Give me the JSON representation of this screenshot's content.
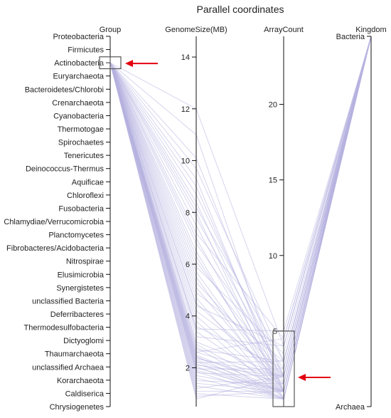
{
  "chart_data": {
    "type": "parallel-coordinates",
    "title": "Parallel coordinates",
    "line_color": "#b7b2e0",
    "axes": [
      {
        "name": "Group",
        "kind": "categorical",
        "categories": [
          "Proteobacteria",
          "Firmicutes",
          "Actinobacteria",
          "Euryarchaeota",
          "Bacteroidetes/Chlorobi",
          "Crenarchaeota",
          "Cyanobacteria",
          "Thermotogae",
          "Spirochaetes",
          "Tenericutes",
          "Deinococcus-Thermus",
          "Aquificae",
          "Chloroflexi",
          "Fusobacteria",
          "Chlamydiae/Verrucomicrobia",
          "Planctomycetes",
          "Fibrobacteres/Acidobacteria",
          "Nitrospirae",
          "Elusimicrobia",
          "Synergistetes",
          "unclassified Bacteria",
          "Deferribacteres",
          "Thermodesulfobacteria",
          "Dictyoglomi",
          "Thaumarchaeota",
          "unclassified Archaea",
          "Korarchaeota",
          "Caldiserica",
          "Chrysiogenetes"
        ]
      },
      {
        "name": "GenomeSize(MB)",
        "kind": "numeric",
        "domain": [
          0.5,
          14.8
        ],
        "ticks": [
          2,
          4,
          6,
          8,
          10,
          12,
          14
        ]
      },
      {
        "name": "ArrayCount",
        "kind": "numeric",
        "domain": [
          0,
          24.5
        ],
        "ticks": [
          5,
          10,
          15,
          20
        ]
      },
      {
        "name": "Kingdom",
        "kind": "categorical",
        "categories": [
          "Bacteria",
          "Archaea"
        ]
      }
    ],
    "brushes": [
      {
        "axis": "Group",
        "selected": [
          "Actinobacteria"
        ]
      },
      {
        "axis": "ArrayCount",
        "range": [
          0,
          5
        ]
      }
    ],
    "annotations": [
      {
        "type": "arrow",
        "color": "#e3000f",
        "points_to": "Group brush"
      },
      {
        "type": "arrow",
        "color": "#e3000f",
        "points_to": "ArrayCount brush"
      }
    ],
    "records": [
      {
        "g": "Actinobacteria",
        "s": 12.0,
        "a": 4.0,
        "k": "Bacteria"
      },
      {
        "g": "Actinobacteria",
        "s": 11.0,
        "a": 1.0,
        "k": "Bacteria"
      },
      {
        "g": "Actinobacteria",
        "s": 10.1,
        "a": 2.0,
        "k": "Bacteria"
      },
      {
        "g": "Actinobacteria",
        "s": 9.7,
        "a": 3.0,
        "k": "Bacteria"
      },
      {
        "g": "Actinobacteria",
        "s": 9.3,
        "a": 1.0,
        "k": "Bacteria"
      },
      {
        "g": "Actinobacteria",
        "s": 9.0,
        "a": 1.5,
        "k": "Bacteria"
      },
      {
        "g": "Actinobacteria",
        "s": 8.7,
        "a": 2.0,
        "k": "Bacteria"
      },
      {
        "g": "Actinobacteria",
        "s": 8.4,
        "a": 1.0,
        "k": "Bacteria"
      },
      {
        "g": "Actinobacteria",
        "s": 8.2,
        "a": 3.0,
        "k": "Bacteria"
      },
      {
        "g": "Actinobacteria",
        "s": 8.0,
        "a": 0.5,
        "k": "Bacteria"
      },
      {
        "g": "Actinobacteria",
        "s": 7.8,
        "a": 2.0,
        "k": "Bacteria"
      },
      {
        "g": "Actinobacteria",
        "s": 7.5,
        "a": 1.0,
        "k": "Bacteria"
      },
      {
        "g": "Actinobacteria",
        "s": 7.2,
        "a": 4.5,
        "k": "Bacteria"
      },
      {
        "g": "Actinobacteria",
        "s": 7.0,
        "a": 1.0,
        "k": "Bacteria"
      },
      {
        "g": "Actinobacteria",
        "s": 6.8,
        "a": 2.5,
        "k": "Bacteria"
      },
      {
        "g": "Actinobacteria",
        "s": 6.5,
        "a": 0.5,
        "k": "Bacteria"
      },
      {
        "g": "Actinobacteria",
        "s": 6.3,
        "a": 1.0,
        "k": "Bacteria"
      },
      {
        "g": "Actinobacteria",
        "s": 6.1,
        "a": 2.0,
        "k": "Bacteria"
      },
      {
        "g": "Actinobacteria",
        "s": 5.9,
        "a": 3.5,
        "k": "Bacteria"
      },
      {
        "g": "Actinobacteria",
        "s": 5.7,
        "a": 1.0,
        "k": "Bacteria"
      },
      {
        "g": "Actinobacteria",
        "s": 5.5,
        "a": 0.5,
        "k": "Bacteria"
      },
      {
        "g": "Actinobacteria",
        "s": 5.3,
        "a": 2.0,
        "k": "Bacteria"
      },
      {
        "g": "Actinobacteria",
        "s": 5.1,
        "a": 1.0,
        "k": "Bacteria"
      },
      {
        "g": "Actinobacteria",
        "s": 4.9,
        "a": 3.0,
        "k": "Bacteria"
      },
      {
        "g": "Actinobacteria",
        "s": 4.7,
        "a": 0.5,
        "k": "Bacteria"
      },
      {
        "g": "Actinobacteria",
        "s": 4.5,
        "a": 1.5,
        "k": "Bacteria"
      },
      {
        "g": "Actinobacteria",
        "s": 4.4,
        "a": 4.0,
        "k": "Bacteria"
      },
      {
        "g": "Actinobacteria",
        "s": 4.2,
        "a": 2.0,
        "k": "Bacteria"
      },
      {
        "g": "Actinobacteria",
        "s": 4.0,
        "a": 1.0,
        "k": "Bacteria"
      },
      {
        "g": "Actinobacteria",
        "s": 3.8,
        "a": 0.5,
        "k": "Bacteria"
      },
      {
        "g": "Actinobacteria",
        "s": 3.6,
        "a": 2.5,
        "k": "Bacteria"
      },
      {
        "g": "Actinobacteria",
        "s": 3.4,
        "a": 1.0,
        "k": "Bacteria"
      },
      {
        "g": "Actinobacteria",
        "s": 3.2,
        "a": 4.0,
        "k": "Bacteria"
      },
      {
        "g": "Actinobacteria",
        "s": 3.0,
        "a": 2.0,
        "k": "Bacteria"
      },
      {
        "g": "Actinobacteria",
        "s": 2.9,
        "a": 1.0,
        "k": "Bacteria"
      },
      {
        "g": "Actinobacteria",
        "s": 2.8,
        "a": 0.5,
        "k": "Bacteria"
      },
      {
        "g": "Actinobacteria",
        "s": 2.7,
        "a": 3.0,
        "k": "Bacteria"
      },
      {
        "g": "Actinobacteria",
        "s": 2.6,
        "a": 2.0,
        "k": "Bacteria"
      },
      {
        "g": "Actinobacteria",
        "s": 2.5,
        "a": 1.0,
        "k": "Bacteria"
      },
      {
        "g": "Actinobacteria",
        "s": 2.45,
        "a": 0.5,
        "k": "Bacteria"
      },
      {
        "g": "Actinobacteria",
        "s": 2.4,
        "a": 1.5,
        "k": "Bacteria"
      },
      {
        "g": "Actinobacteria",
        "s": 2.35,
        "a": 2.0,
        "k": "Bacteria"
      },
      {
        "g": "Actinobacteria",
        "s": 2.3,
        "a": 1.0,
        "k": "Bacteria"
      },
      {
        "g": "Actinobacteria",
        "s": 2.25,
        "a": 0.5,
        "k": "Bacteria"
      },
      {
        "g": "Actinobacteria",
        "s": 2.2,
        "a": 3.0,
        "k": "Bacteria"
      },
      {
        "g": "Actinobacteria",
        "s": 2.15,
        "a": 1.0,
        "k": "Bacteria"
      },
      {
        "g": "Actinobacteria",
        "s": 2.1,
        "a": 2.0,
        "k": "Bacteria"
      },
      {
        "g": "Actinobacteria",
        "s": 2.05,
        "a": 0.5,
        "k": "Bacteria"
      },
      {
        "g": "Actinobacteria",
        "s": 2.0,
        "a": 1.0,
        "k": "Bacteria"
      },
      {
        "g": "Actinobacteria",
        "s": 1.95,
        "a": 2.5,
        "k": "Bacteria"
      },
      {
        "g": "Actinobacteria",
        "s": 1.9,
        "a": 1.0,
        "k": "Bacteria"
      },
      {
        "g": "Actinobacteria",
        "s": 1.85,
        "a": 0.5,
        "k": "Bacteria"
      },
      {
        "g": "Actinobacteria",
        "s": 1.8,
        "a": 2.0,
        "k": "Bacteria"
      },
      {
        "g": "Actinobacteria",
        "s": 1.7,
        "a": 1.0,
        "k": "Bacteria"
      },
      {
        "g": "Actinobacteria",
        "s": 1.6,
        "a": 0.5,
        "k": "Bacteria"
      },
      {
        "g": "Actinobacteria",
        "s": 1.5,
        "a": 1.5,
        "k": "Bacteria"
      },
      {
        "g": "Actinobacteria",
        "s": 1.4,
        "a": 1.0,
        "k": "Bacteria"
      },
      {
        "g": "Actinobacteria",
        "s": 1.3,
        "a": 0.5,
        "k": "Bacteria"
      },
      {
        "g": "Actinobacteria",
        "s": 1.2,
        "a": 2.0,
        "k": "Bacteria"
      },
      {
        "g": "Actinobacteria",
        "s": 1.1,
        "a": 1.0,
        "k": "Bacteria"
      },
      {
        "g": "Actinobacteria",
        "s": 1.0,
        "a": 0.5,
        "k": "Bacteria"
      },
      {
        "g": "Actinobacteria",
        "s": 0.9,
        "a": 1.0,
        "k": "Bacteria"
      },
      {
        "g": "Actinobacteria",
        "s": 0.8,
        "a": 2.0,
        "k": "Bacteria"
      },
      {
        "g": "Actinobacteria",
        "s": 3.5,
        "a": 5.0,
        "k": "Bacteria"
      },
      {
        "g": "Actinobacteria",
        "s": 2.6,
        "a": 4.5,
        "k": "Bacteria"
      }
    ]
  }
}
